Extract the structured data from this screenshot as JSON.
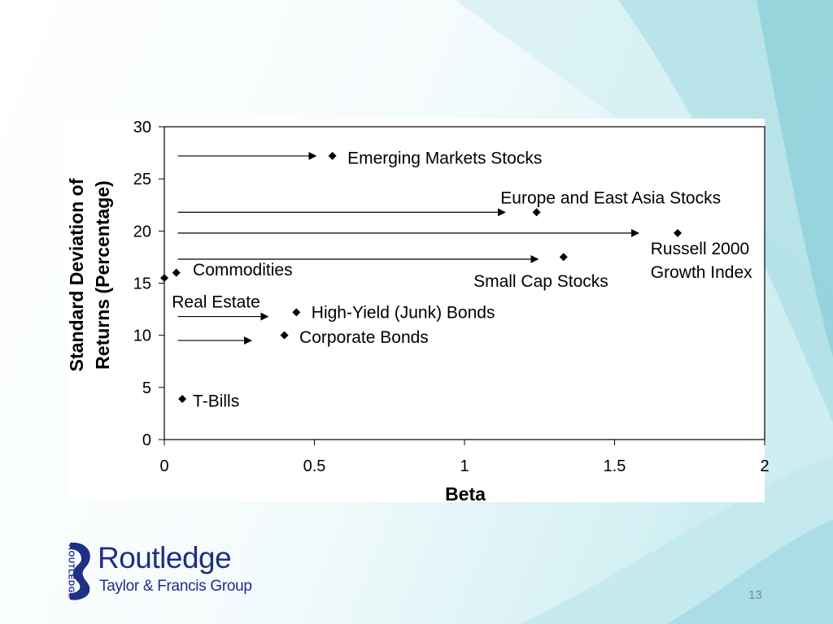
{
  "slide": {
    "page_number": "13",
    "background_colors": [
      "#ffffff",
      "#dff3f6",
      "#9fd8df",
      "#6cc3cd"
    ]
  },
  "logo": {
    "name": "Routledge",
    "group": "Taylor & Francis Group",
    "vertical": "ROUTLEDGE",
    "color": "#1f2f86"
  },
  "chart_data": {
    "type": "scatter",
    "xlabel": "Beta",
    "ylabel_line1": "Standard Deviation of",
    "ylabel_line2": "Returns (Percentage)",
    "xlim": [
      0,
      2
    ],
    "ylim": [
      0,
      30
    ],
    "xticks": [
      "0",
      "0.5",
      "1",
      "1.5",
      "2"
    ],
    "xtick_values": [
      0,
      0.5,
      1,
      1.5,
      2
    ],
    "yticks": [
      "0",
      "5",
      "10",
      "15",
      "20",
      "25",
      "30"
    ],
    "ytick_values": [
      0,
      5,
      10,
      15,
      20,
      25,
      30
    ],
    "grid": false,
    "marker_color": "#000000",
    "points": [
      {
        "x": 0.0,
        "y": 15.5
      },
      {
        "x": 0.04,
        "y": 16.0
      },
      {
        "x": 0.06,
        "y": 3.9
      },
      {
        "x": 0.4,
        "y": 10.0
      },
      {
        "x": 0.44,
        "y": 12.2
      },
      {
        "x": 0.56,
        "y": 27.2
      },
      {
        "x": 1.24,
        "y": 21.8
      },
      {
        "x": 1.33,
        "y": 17.5
      },
      {
        "x": 1.71,
        "y": 19.8
      }
    ],
    "labels": [
      {
        "lines": [
          "Emerging Markets Stocks"
        ],
        "x": 0.61,
        "y": 27.0
      },
      {
        "lines": [
          "Europe and East Asia Stocks"
        ],
        "x": 1.12,
        "y": 23.2
      },
      {
        "lines": [
          "Russell 2000",
          "Growth Index"
        ],
        "x": 1.62,
        "y": 18.3
      },
      {
        "lines": [
          "Commodities"
        ],
        "x": 0.095,
        "y": 16.3
      },
      {
        "lines": [
          "Small Cap Stocks"
        ],
        "x": 1.03,
        "y": 15.2
      },
      {
        "lines": [
          "Real Estate"
        ],
        "x": 0.025,
        "y": 13.2
      },
      {
        "lines": [
          "High-Yield (Junk) Bonds"
        ],
        "x": 0.49,
        "y": 12.2
      },
      {
        "lines": [
          "Corporate Bonds"
        ],
        "x": 0.45,
        "y": 9.8
      },
      {
        "lines": [
          "T-Bills"
        ],
        "x": 0.095,
        "y": 3.7
      }
    ],
    "arrows": [
      {
        "x1": 0.045,
        "x2": 0.505,
        "y": 27.2
      },
      {
        "x1": 0.045,
        "x2": 1.135,
        "y": 21.8
      },
      {
        "x1": 0.045,
        "x2": 1.58,
        "y": 19.8
      },
      {
        "x1": 0.045,
        "x2": 1.245,
        "y": 17.3
      },
      {
        "x1": 0.045,
        "x2": 0.345,
        "y": 11.8
      },
      {
        "x1": 0.045,
        "x2": 0.29,
        "y": 9.5
      }
    ]
  }
}
